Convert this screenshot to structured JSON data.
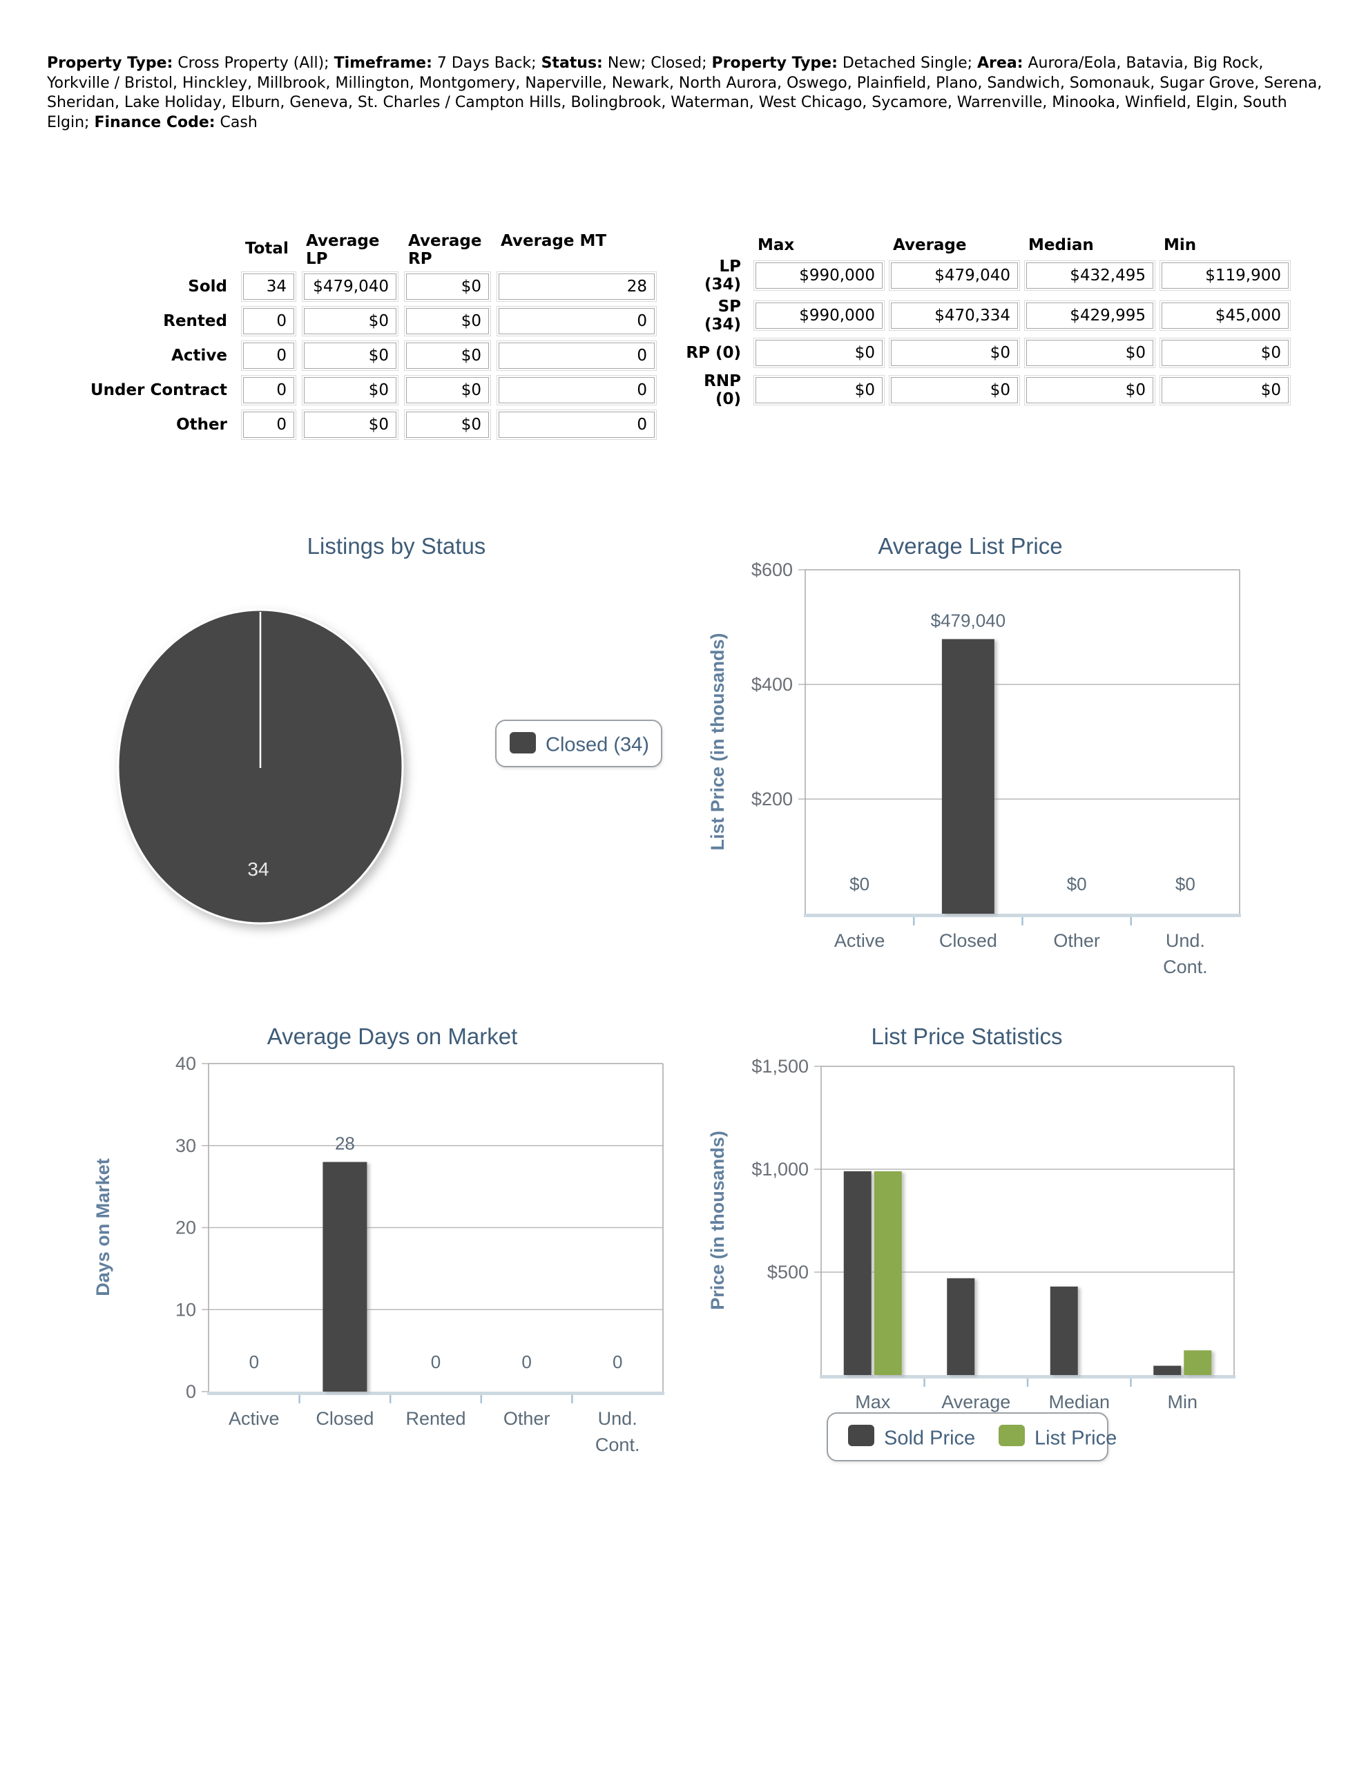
{
  "report_header": {
    "segments": [
      {
        "label": "Property Type:",
        "value": "Cross Property (All)"
      },
      {
        "label": "Timeframe:",
        "value": "7 Days Back"
      },
      {
        "label": "Status:",
        "value": "New; Closed"
      },
      {
        "label": "Property Type:",
        "value": "Detached Single"
      },
      {
        "label": "Area:",
        "value": "Aurora/Eola, Batavia, Big Rock, Yorkville / Bristol, Hinckley, Millbrook, Millington, Montgomery, Naperville, Newark, North Aurora, Oswego, Plainfield, Plano, Sandwich, Somonauk, Sugar Grove, Serena, Sheridan, Lake Holiday, Elburn, Geneva, St. Charles / Campton Hills, Bolingbrook, Waterman, West Chicago, Sycamore, Warrenville, Minooka, Winfield, Elgin, South Elgin"
      },
      {
        "label": "Finance Code:",
        "value": "Cash"
      }
    ],
    "separator": "; "
  },
  "summary_table": {
    "col_headers": [
      "Total",
      "Average\nLP",
      "Average\nRP",
      "Average MT"
    ],
    "rows": [
      {
        "label": "Sold",
        "values": [
          "34",
          "$479,040",
          "$0",
          "28"
        ]
      },
      {
        "label": "Rented",
        "values": [
          "0",
          "$0",
          "$0",
          "0"
        ]
      },
      {
        "label": "Active",
        "values": [
          "0",
          "$0",
          "$0",
          "0"
        ]
      },
      {
        "label": "Under Contract",
        "values": [
          "0",
          "$0",
          "$0",
          "0"
        ]
      },
      {
        "label": "Other",
        "values": [
          "0",
          "$0",
          "$0",
          "0"
        ]
      }
    ]
  },
  "price_table": {
    "col_headers": [
      "Max",
      "Average",
      "Median",
      "Min"
    ],
    "rows": [
      {
        "label": "LP (34)",
        "values": [
          "$990,000",
          "$479,040",
          "$432,495",
          "$119,900"
        ]
      },
      {
        "label": "SP (34)",
        "values": [
          "$990,000",
          "$470,334",
          "$429,995",
          "$45,000"
        ]
      },
      {
        "label": "RP (0)",
        "values": [
          "$0",
          "$0",
          "$0",
          "$0"
        ]
      },
      {
        "label": "RNP (0)",
        "values": [
          "$0",
          "$0",
          "$0",
          "$0"
        ]
      }
    ]
  },
  "colors": {
    "dark": "#464646",
    "green": "#8ba94d",
    "title": "#3e5c78",
    "axis_label": "#62809e",
    "tick": "#6a6f75",
    "category": "#5b6b79",
    "value_label": "#5b6b79",
    "grid": "#b9b9b9",
    "plot_border": "#a8a8a8",
    "axis_strip": "#cdd9e1",
    "axis_tick": "#a9c2d4",
    "legend_border": "#9ba1a6",
    "legend_text": "#44627e",
    "pie_label": "#e8e8e8",
    "white": "#ffffff"
  },
  "chart_data": [
    {
      "type": "pie",
      "title": "Listings by Status",
      "slices": [
        {
          "label": "Closed",
          "value": 34,
          "color_key": "dark"
        }
      ],
      "slice_value_label": "34",
      "legend": [
        {
          "label": "Closed (34)",
          "color_key": "dark"
        }
      ],
      "legend_position": "right"
    },
    {
      "type": "bar",
      "title": "Average List Price",
      "ylabel": "List Price (in thousands)",
      "ylim": [
        0,
        600
      ],
      "yticks": [
        {
          "value": 200,
          "label": "$200"
        },
        {
          "value": 400,
          "label": "$400"
        },
        {
          "value": 600,
          "label": "$600"
        }
      ],
      "categories": [
        "Active",
        "Closed",
        "Other",
        "Und.\nCont."
      ],
      "values": [
        0,
        479.04,
        0,
        0
      ],
      "value_labels": [
        "$0",
        "$479,040",
        "$0",
        "$0"
      ],
      "bar_color_key": "dark",
      "grid": true,
      "legend_position": "none"
    },
    {
      "type": "bar",
      "title": "Average Days on Market",
      "ylabel": "Days on Market",
      "ylim": [
        0,
        40
      ],
      "yticks": [
        {
          "value": 0,
          "label": "0"
        },
        {
          "value": 10,
          "label": "10"
        },
        {
          "value": 20,
          "label": "20"
        },
        {
          "value": 30,
          "label": "30"
        },
        {
          "value": 40,
          "label": "40"
        }
      ],
      "categories": [
        "Active",
        "Closed",
        "Rented",
        "Other",
        "Und.\nCont."
      ],
      "values": [
        0,
        28,
        0,
        0,
        0
      ],
      "value_labels": [
        "0",
        "28",
        "0",
        "0",
        "0"
      ],
      "bar_color_key": "dark",
      "grid": true,
      "legend_position": "none"
    },
    {
      "type": "grouped_bar",
      "title": "List Price Statistics",
      "ylabel": "Price (in thousands)",
      "ylim": [
        0,
        1500
      ],
      "yticks": [
        {
          "value": 500,
          "label": "$500"
        },
        {
          "value": 1000,
          "label": "$1,000"
        },
        {
          "value": 1500,
          "label": "$1,500"
        }
      ],
      "categories": [
        "Max",
        "Average",
        "Median",
        "Min"
      ],
      "series": [
        {
          "name": "Sold Price",
          "color_key": "dark",
          "values": [
            990,
            470.334,
            429.995,
            45
          ]
        },
        {
          "name": "List Price",
          "color_key": "green",
          "values": [
            990,
            null,
            null,
            119.9
          ]
        }
      ],
      "grid": true,
      "legend_position": "bottom"
    }
  ]
}
